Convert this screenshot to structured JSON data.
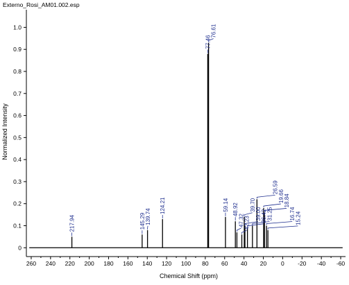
{
  "chart_data": {
    "type": "line",
    "title": "Externo_Rosi_AM01.002.esp",
    "xlabel": "Chemical Shift (ppm)",
    "ylabel": "Normalized Intensity",
    "xlim": [
      265,
      -65
    ],
    "ylim": [
      -0.04,
      1.08
    ],
    "x_reversed": true,
    "x_ticks": [
      260,
      240,
      220,
      200,
      180,
      160,
      140,
      120,
      100,
      80,
      60,
      40,
      20,
      0,
      -20,
      -40,
      -60
    ],
    "y_ticks": [
      0,
      0.1,
      0.2,
      0.3,
      0.4,
      0.5,
      0.6,
      0.7,
      0.8,
      0.9,
      1.0
    ],
    "baseline": 0,
    "colors": {
      "peak_label": "#1f2f8f",
      "spectrum": "#000000"
    },
    "peaks": [
      {
        "x": 217.94,
        "y": 0.05,
        "label": "217.94"
      },
      {
        "x": 145.29,
        "y": 0.06,
        "label": "145.29"
      },
      {
        "x": 139.74,
        "y": 0.08,
        "label": "139.74"
      },
      {
        "x": 124.21,
        "y": 0.13,
        "label": "124.21"
      },
      {
        "x": 77.46,
        "y": 0.88,
        "label": "77.46"
      },
      {
        "x": 76.61,
        "y": 0.93,
        "label": "76.61"
      },
      {
        "x": 59.14,
        "y": 0.14,
        "label": "59.14"
      },
      {
        "x": 48.92,
        "y": 0.12,
        "label": "48.92"
      },
      {
        "x": 47.32,
        "y": 0.07,
        "label": "47.32"
      },
      {
        "x": 42.23,
        "y": 0.06,
        "label": "42.23"
      },
      {
        "x": 39.7,
        "y": 0.14,
        "label": "39.70"
      },
      {
        "x": 39.0,
        "y": 0.1,
        "label": "39.00"
      },
      {
        "x": 36.42,
        "y": 0.09,
        "label": "36.42"
      },
      {
        "x": 31.25,
        "y": 0.1,
        "label": "31.25"
      },
      {
        "x": 26.59,
        "y": 0.22,
        "label": "26.59"
      },
      {
        "x": 19.66,
        "y": 0.18,
        "label": "19.66"
      },
      {
        "x": 18.84,
        "y": 0.16,
        "label": "18.84"
      },
      {
        "x": 16.74,
        "y": 0.1,
        "label": "16.74"
      },
      {
        "x": 15.24,
        "y": 0.08,
        "label": "15.24"
      }
    ]
  }
}
